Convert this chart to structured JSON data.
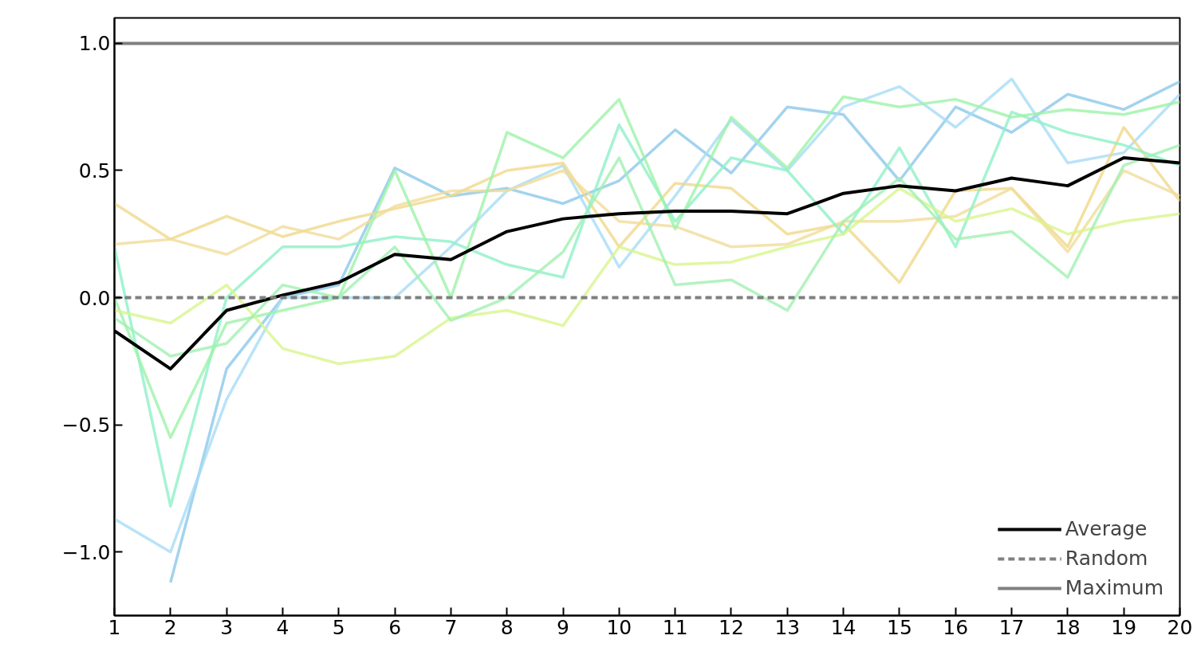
{
  "chart_data": {
    "type": "line",
    "x": [
      1,
      2,
      3,
      4,
      5,
      6,
      7,
      8,
      9,
      10,
      11,
      12,
      13,
      14,
      15,
      16,
      17,
      18,
      19,
      20
    ],
    "xlim": [
      1,
      20
    ],
    "xticks": [
      1,
      2,
      3,
      4,
      5,
      6,
      7,
      8,
      9,
      10,
      11,
      12,
      13,
      14,
      15,
      16,
      17,
      18,
      19,
      20
    ],
    "ylim": [
      -1.25,
      1.1
    ],
    "yticks": [
      {
        "value": -1.0,
        "label": "−1.0"
      },
      {
        "value": -0.5,
        "label": "−0.5"
      },
      {
        "value": 0,
        "label": "0.0"
      },
      {
        "value": 0.5,
        "label": "0.5"
      },
      {
        "value": 1.0,
        "label": "1.0"
      }
    ],
    "grid": false,
    "legend": "bottom right",
    "series": [
      {
        "color": "#8cc8ea",
        "values": [
          null,
          -1.12,
          -0.28,
          0.0,
          0.05,
          0.51,
          0.4,
          0.43,
          0.37,
          0.46,
          0.66,
          0.49,
          0.75,
          0.72,
          0.46,
          0.75,
          0.65,
          0.8,
          0.74,
          0.85
        ]
      },
      {
        "color": "#a8dcf5",
        "values": [
          -0.87,
          -1.0,
          -0.4,
          0.0,
          0.0,
          0.0,
          0.2,
          0.42,
          0.52,
          0.12,
          0.4,
          0.7,
          0.5,
          0.75,
          0.83,
          0.67,
          0.86,
          0.53,
          0.57,
          0.8
        ]
      },
      {
        "color": "#f0d88a",
        "values": [
          0.37,
          0.23,
          0.32,
          0.24,
          0.3,
          0.35,
          0.4,
          0.5,
          0.53,
          0.2,
          0.45,
          0.43,
          0.25,
          0.29,
          0.06,
          0.42,
          0.43,
          0.2,
          0.67,
          0.38
        ]
      },
      {
        "color": "#f0dc9a",
        "values": [
          0.21,
          0.23,
          0.17,
          0.28,
          0.23,
          0.36,
          0.42,
          0.42,
          0.5,
          0.3,
          0.28,
          0.2,
          0.21,
          0.3,
          0.3,
          0.32,
          0.43,
          0.18,
          0.5,
          0.4
        ]
      },
      {
        "color": "#8ef0c8",
        "values": [
          0.2,
          -0.82,
          0.0,
          0.2,
          0.2,
          0.24,
          0.22,
          0.13,
          0.08,
          0.68,
          0.3,
          0.55,
          0.5,
          0.25,
          0.59,
          0.2,
          0.73,
          0.65,
          0.6,
          0.52
        ]
      },
      {
        "color": "#9cf2a8",
        "values": [
          0.0,
          -0.55,
          -0.1,
          -0.05,
          0.0,
          0.5,
          0.0,
          0.65,
          0.55,
          0.78,
          0.27,
          0.71,
          0.51,
          0.79,
          0.75,
          0.78,
          0.71,
          0.74,
          0.72,
          0.77
        ]
      },
      {
        "color": "#d8f58c",
        "values": [
          -0.05,
          -0.1,
          0.05,
          -0.2,
          -0.26,
          -0.23,
          -0.08,
          -0.05,
          -0.11,
          0.2,
          0.13,
          0.14,
          0.2,
          0.25,
          0.43,
          0.3,
          0.35,
          0.25,
          0.3,
          0.33
        ]
      },
      {
        "color": "#a0f0b0",
        "values": [
          -0.08,
          -0.23,
          -0.18,
          0.05,
          0.0,
          0.2,
          -0.09,
          0.0,
          0.18,
          0.55,
          0.05,
          0.07,
          -0.05,
          0.3,
          0.47,
          0.23,
          0.26,
          0.08,
          0.52,
          0.6
        ]
      },
      {
        "name": "Average",
        "color": "#000000",
        "values": [
          -0.13,
          -0.28,
          -0.05,
          0.01,
          0.06,
          0.17,
          0.15,
          0.26,
          0.31,
          0.33,
          0.34,
          0.34,
          0.33,
          0.41,
          0.44,
          0.42,
          0.47,
          0.44,
          0.55,
          0.53
        ]
      }
    ],
    "ref_lines": [
      {
        "axis": "y",
        "value": 0,
        "label": "Random",
        "color": "#808080",
        "line_style": "dashed"
      },
      {
        "axis": "y",
        "value": 1.0,
        "label": "Maximum",
        "color": "#808080",
        "line_style": "solid"
      }
    ]
  }
}
